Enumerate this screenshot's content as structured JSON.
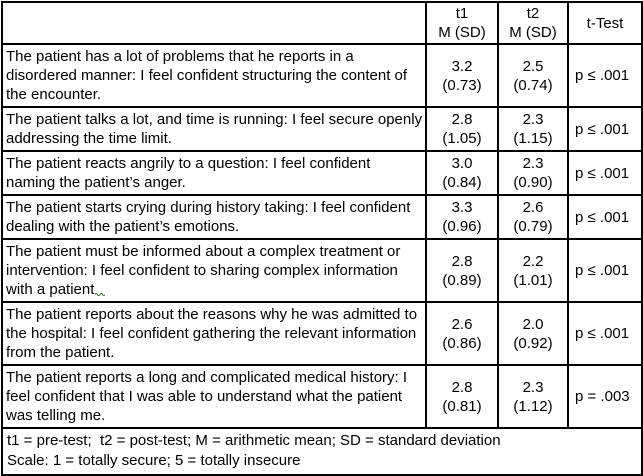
{
  "table": {
    "header": {
      "statement_label": "",
      "t1_line1": "t1",
      "t1_line2": "M (SD)",
      "t2_line1": "t2",
      "t2_line2": "M (SD)",
      "ttest_label": "t-Test"
    },
    "rows": [
      {
        "statement": "The patient has a lot of problems that he reports in a disordered manner: I feel confident structuring the content of the encounter.",
        "t1_mean": "3.2",
        "t1_sd": "(0.73)",
        "t2_mean": "2.5",
        "t2_sd": "(0.74)",
        "t_test": "p ≤ .001",
        "lines": 3,
        "squiggle": false
      },
      {
        "statement": "The patient talks a lot, and time is running: I feel secure openly addressing the time limit.",
        "t1_mean": "2.8",
        "t1_sd": "(1.05)",
        "t2_mean": "2.3",
        "t2_sd": "(1.15)",
        "t_test": "p ≤ .001",
        "lines": 2,
        "squiggle": false
      },
      {
        "statement": "The patient reacts angrily to a question: I feel confident naming the patient’s anger.",
        "t1_mean": "3.0",
        "t1_sd": "(0.84)",
        "t2_mean": "2.3",
        "t2_sd": "(0.90)",
        "t_test": "p ≤ .001",
        "lines": 2,
        "squiggle": false
      },
      {
        "statement": "The patient starts crying during history taking: I feel confident dealing with the patient’s emotions.",
        "t1_mean": "3.3",
        "t1_sd": "(0.96)",
        "t2_mean": "2.6",
        "t2_sd": "(0.79)",
        "t_test": "p ≤ .001",
        "lines": 2,
        "squiggle": false
      },
      {
        "statement": "The patient must be informed about a complex treatment or intervention: I feel confident to sharing complex information with a patient",
        "t1_mean": "2.8",
        "t1_sd": "(0.89)",
        "t2_mean": "2.2",
        "t2_sd": "(1.01)",
        "t_test": "p ≤ .001",
        "lines": 3,
        "squiggle": true
      },
      {
        "statement": "The patient reports about the reasons why he was admitted to the hospital: I feel confident gathering the relevant information from the patient.",
        "t1_mean": "2.6",
        "t1_sd": "(0.86)",
        "t2_mean": "2.0",
        "t2_sd": "(0.92)",
        "t_test": "p ≤ .001",
        "lines": 3,
        "squiggle": false
      },
      {
        "statement": "The patient reports a long and complicated medical history: I feel confident that I was able to understand what the patient was telling me.",
        "t1_mean": "2.8",
        "t1_sd": "(0.81)",
        "t2_mean": "2.3",
        "t2_sd": "(1.12)",
        "t_test": "p = .003",
        "lines": 3,
        "squiggle": false
      }
    ],
    "footer": {
      "line1": "t1 = pre-test;  t2 = post-test; M = arithmetic mean; SD = standard deviation",
      "line2": "Scale: 1 = totally secure; 5 = totally insecure"
    }
  },
  "colors": {
    "border": "#000000",
    "text": "#000000",
    "background": "#ffffff",
    "squiggle_green": "#3a7d44"
  }
}
